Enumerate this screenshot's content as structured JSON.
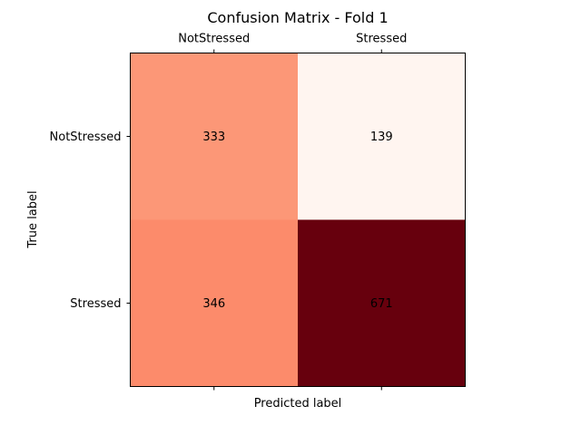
{
  "chart_data": {
    "type": "heatmap",
    "title": "Confusion Matrix - Fold 1",
    "xlabel": "Predicted label",
    "ylabel": "True label",
    "x_categories": [
      "NotStressed",
      "Stressed"
    ],
    "y_categories": [
      "NotStressed",
      "Stressed"
    ],
    "values": [
      [
        333,
        139
      ],
      [
        346,
        671
      ]
    ],
    "x_tick_position": "top",
    "colormap": "Reds",
    "cell_colors": [
      [
        "#fc9777",
        "#fff5f0"
      ],
      [
        "#fc8b6b",
        "#67000d"
      ]
    ],
    "grid": false
  }
}
